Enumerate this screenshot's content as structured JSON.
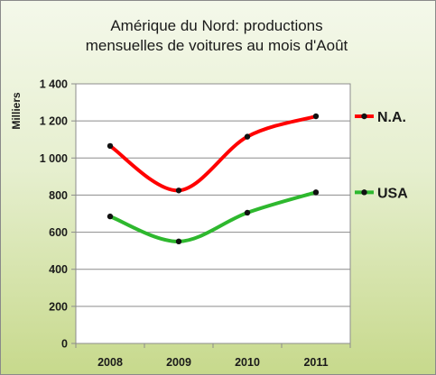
{
  "chart_data": {
    "type": "line",
    "title": [
      "Amérique du Nord: productions",
      "mensuelles de voitures au mois d'Août"
    ],
    "ylabel": "Milliers",
    "xlabel": "",
    "categories": [
      "2008",
      "2009",
      "2010",
      "2011"
    ],
    "y_ticks": [
      "0",
      "200",
      "400",
      "600",
      "800",
      "1 000",
      "1 200",
      "1 400"
    ],
    "ylim": [
      0,
      1400
    ],
    "grid": "horizontal",
    "legend": "right",
    "series": [
      {
        "name": "N.A.",
        "values": [
          1065,
          825,
          1115,
          1225
        ],
        "color": "#ff0000"
      },
      {
        "name": "USA",
        "values": [
          685,
          550,
          705,
          815
        ],
        "color": "#2eb82e"
      }
    ]
  }
}
